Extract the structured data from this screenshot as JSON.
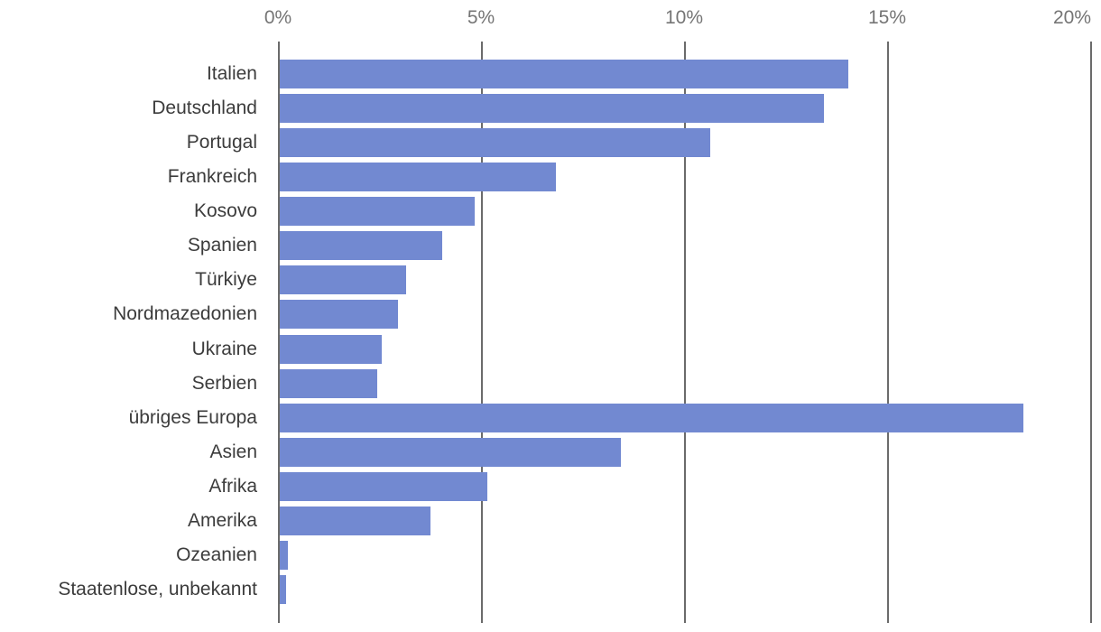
{
  "chart_data": {
    "type": "bar",
    "orientation": "horizontal",
    "title": "",
    "xlabel": "",
    "ylabel": "",
    "categories": [
      "Italien",
      "Deutschland",
      "Portugal",
      "Frankreich",
      "Kosovo",
      "Spanien",
      "Türkiye",
      "Nordmazedonien",
      "Ukraine",
      "Serbien",
      "übriges Europa",
      "Asien",
      "Afrika",
      "Amerika",
      "Ozeanien",
      "Staatenlose, unbekannt"
    ],
    "values": [
      14.0,
      13.4,
      10.6,
      6.8,
      4.8,
      4.0,
      3.1,
      2.9,
      2.5,
      2.4,
      18.3,
      8.4,
      5.1,
      3.7,
      0.2,
      0.15
    ],
    "unit": "%",
    "x_axis": {
      "position": "top",
      "tick_labels": [
        "0%",
        "5%",
        "10%",
        "15%",
        "20%"
      ],
      "tick_values": [
        0,
        5,
        10,
        15,
        20
      ],
      "xlim": [
        0,
        20
      ]
    },
    "grid": true,
    "legend": "none",
    "colors": {
      "bar": "#7289d1",
      "gridline": "#6b6b6b",
      "axis_label": "#757575",
      "category_label": "#3c3c3c",
      "background": "#ffffff"
    }
  }
}
